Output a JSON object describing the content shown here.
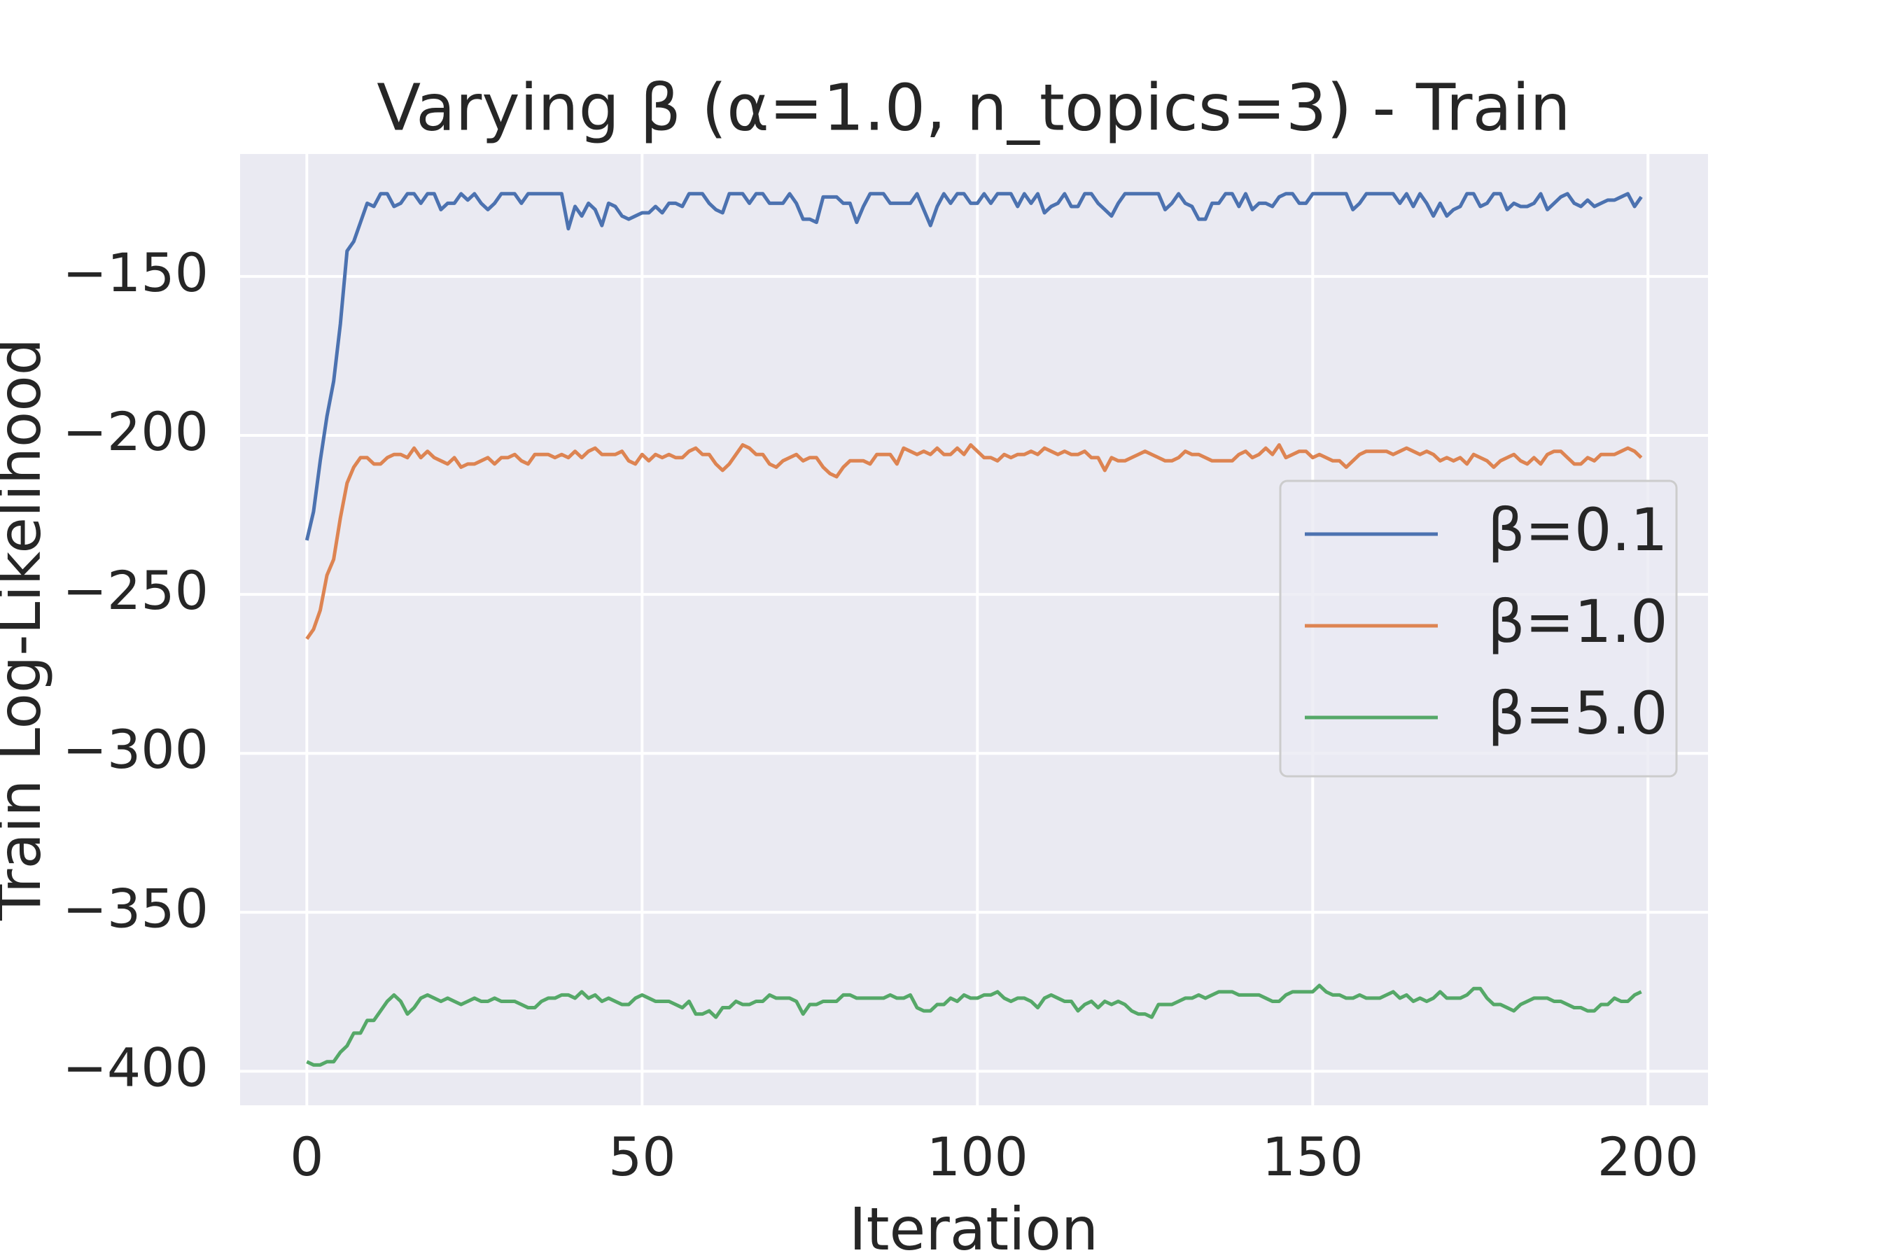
{
  "chart_data": {
    "type": "line",
    "title": "Varying β (α=1.0, n_topics=3) - Train",
    "xlabel": "Iteration",
    "ylabel": "Train Log-Likelihood",
    "x": [
      0,
      1,
      2,
      3,
      4,
      5,
      6,
      7,
      8,
      9,
      10,
      11,
      12,
      13,
      14,
      15,
      16,
      17,
      18,
      19,
      20,
      21,
      22,
      23,
      24,
      25,
      26,
      27,
      28,
      29,
      30,
      31,
      32,
      33,
      34,
      35,
      36,
      37,
      38,
      39,
      40,
      41,
      42,
      43,
      44,
      45,
      46,
      47,
      48,
      49,
      50,
      51,
      52,
      53,
      54,
      55,
      56,
      57,
      58,
      59,
      60,
      61,
      62,
      63,
      64,
      65,
      66,
      67,
      68,
      69,
      70,
      71,
      72,
      73,
      74,
      75,
      76,
      77,
      78,
      79,
      80,
      81,
      82,
      83,
      84,
      85,
      86,
      87,
      88,
      89,
      90,
      91,
      92,
      93,
      94,
      95,
      96,
      97,
      98,
      99,
      100,
      101,
      102,
      103,
      104,
      105,
      106,
      107,
      108,
      109,
      110,
      111,
      112,
      113,
      114,
      115,
      116,
      117,
      118,
      119,
      120,
      121,
      122,
      123,
      124,
      125,
      126,
      127,
      128,
      129,
      130,
      131,
      132,
      133,
      134,
      135,
      136,
      137,
      138,
      139,
      140,
      141,
      142,
      143,
      144,
      145,
      146,
      147,
      148,
      149,
      150,
      151,
      152,
      153,
      154,
      155,
      156,
      157,
      158,
      159,
      160,
      161,
      162,
      163,
      164,
      165,
      166,
      167,
      168,
      169,
      170,
      171,
      172,
      173,
      174,
      175,
      176,
      177,
      178,
      179,
      180,
      181,
      182,
      183,
      184,
      185,
      186,
      187,
      188,
      189,
      190,
      191,
      192,
      193,
      194,
      195,
      196,
      197,
      198,
      199
    ],
    "series": [
      {
        "name": "β=0.1",
        "color": "#4c72b0",
        "values": [
          -233,
          -224,
          -208,
          -194,
          -183,
          -165,
          -142,
          -139,
          -133,
          -127,
          -128,
          -124,
          -124,
          -128,
          -127,
          -124,
          -124,
          -127,
          -124,
          -124,
          -129,
          -127,
          -127,
          -124,
          -126,
          -124,
          -127,
          -129,
          -127,
          -124,
          -124,
          -124,
          -127,
          -124,
          -124,
          -124,
          -124,
          -124,
          -124,
          -135,
          -128,
          -131,
          -127,
          -129,
          -134,
          -127,
          -128,
          -131,
          -132,
          -131,
          -130,
          -130,
          -128,
          -130,
          -127,
          -127,
          -128,
          -124,
          -124,
          -124,
          -127,
          -129,
          -130,
          -124,
          -124,
          -124,
          -127,
          -124,
          -124,
          -127,
          -127,
          -127,
          -124,
          -127,
          -132,
          -132,
          -133,
          -125,
          -125,
          -125,
          -127,
          -127,
          -133,
          -128,
          -124,
          -124,
          -124,
          -127,
          -127,
          -127,
          -127,
          -124,
          -129,
          -134,
          -128,
          -124,
          -127,
          -124,
          -124,
          -127,
          -127,
          -124,
          -127,
          -124,
          -124,
          -124,
          -128,
          -124,
          -127,
          -124,
          -130,
          -128,
          -127,
          -124,
          -128,
          -128,
          -124,
          -124,
          -127,
          -129,
          -131,
          -127,
          -124,
          -124,
          -124,
          -124,
          -124,
          -124,
          -129,
          -127,
          -124,
          -127,
          -128,
          -132,
          -132,
          -127,
          -127,
          -124,
          -124,
          -128,
          -124,
          -129,
          -127,
          -127,
          -128,
          -125,
          -124,
          -124,
          -127,
          -127,
          -124,
          -124,
          -124,
          -124,
          -124,
          -124,
          -129,
          -127,
          -124,
          -124,
          -124,
          -124,
          -124,
          -127,
          -124,
          -128,
          -124,
          -127,
          -131,
          -127,
          -131,
          -129,
          -128,
          -124,
          -124,
          -128,
          -127,
          -124,
          -124,
          -129,
          -127,
          -128,
          -128,
          -127,
          -124,
          -129,
          -127,
          -125,
          -124,
          -127,
          -128,
          -126,
          -128,
          -127,
          -126,
          -126,
          -125,
          -124,
          -128,
          -125
        ]
      },
      {
        "name": "β=1.0",
        "color": "#dd8452",
        "values": [
          -264,
          -261,
          -255,
          -244,
          -239,
          -226,
          -215,
          -210,
          -207,
          -207,
          -209,
          -209,
          -207,
          -206,
          -206,
          -207,
          -204,
          -207,
          -205,
          -207,
          -208,
          -209,
          -207,
          -210,
          -209,
          -209,
          -208,
          -207,
          -209,
          -207,
          -207,
          -206,
          -208,
          -209,
          -206,
          -206,
          -206,
          -207,
          -206,
          -207,
          -205,
          -207,
          -205,
          -204,
          -206,
          -206,
          -206,
          -205,
          -208,
          -209,
          -206,
          -208,
          -206,
          -207,
          -206,
          -207,
          -207,
          -205,
          -204,
          -206,
          -206,
          -209,
          -211,
          -209,
          -206,
          -203,
          -204,
          -206,
          -206,
          -209,
          -210,
          -208,
          -207,
          -206,
          -208,
          -207,
          -207,
          -210,
          -212,
          -213,
          -210,
          -208,
          -208,
          -208,
          -209,
          -206,
          -206,
          -206,
          -209,
          -204,
          -205,
          -206,
          -205,
          -206,
          -204,
          -206,
          -206,
          -204,
          -206,
          -203,
          -205,
          -207,
          -207,
          -208,
          -206,
          -207,
          -206,
          -206,
          -205,
          -206,
          -204,
          -205,
          -206,
          -205,
          -206,
          -206,
          -205,
          -207,
          -207,
          -211,
          -207,
          -208,
          -208,
          -207,
          -206,
          -205,
          -206,
          -207,
          -208,
          -208,
          -207,
          -205,
          -206,
          -206,
          -207,
          -208,
          -208,
          -208,
          -208,
          -206,
          -205,
          -207,
          -206,
          -204,
          -206,
          -203,
          -207,
          -206,
          -205,
          -205,
          -207,
          -206,
          -207,
          -208,
          -208,
          -210,
          -208,
          -206,
          -205,
          -205,
          -205,
          -205,
          -206,
          -205,
          -204,
          -205,
          -206,
          -205,
          -206,
          -208,
          -207,
          -208,
          -207,
          -209,
          -206,
          -207,
          -208,
          -210,
          -208,
          -207,
          -206,
          -208,
          -209,
          -207,
          -209,
          -206,
          -205,
          -205,
          -207,
          -209,
          -209,
          -207,
          -208,
          -206,
          -206,
          -206,
          -205,
          -204,
          -205,
          -207
        ]
      },
      {
        "name": "β=5.0",
        "color": "#55a868",
        "values": [
          -397,
          -398,
          -398,
          -397,
          -397,
          -394,
          -392,
          -388,
          -388,
          -384,
          -384,
          -381,
          -378,
          -376,
          -378,
          -382,
          -380,
          -377,
          -376,
          -377,
          -378,
          -377,
          -378,
          -379,
          -378,
          -377,
          -378,
          -378,
          -377,
          -378,
          -378,
          -378,
          -379,
          -380,
          -380,
          -378,
          -377,
          -377,
          -376,
          -376,
          -377,
          -375,
          -377,
          -376,
          -378,
          -377,
          -378,
          -379,
          -379,
          -377,
          -376,
          -377,
          -378,
          -378,
          -378,
          -379,
          -380,
          -378,
          -382,
          -382,
          -381,
          -383,
          -380,
          -380,
          -378,
          -379,
          -379,
          -378,
          -378,
          -376,
          -377,
          -377,
          -377,
          -378,
          -382,
          -379,
          -379,
          -378,
          -378,
          -378,
          -376,
          -376,
          -377,
          -377,
          -377,
          -377,
          -377,
          -376,
          -377,
          -377,
          -376,
          -380,
          -381,
          -381,
          -379,
          -379,
          -377,
          -378,
          -376,
          -377,
          -377,
          -376,
          -376,
          -375,
          -377,
          -378,
          -377,
          -377,
          -378,
          -380,
          -377,
          -376,
          -377,
          -378,
          -378,
          -381,
          -379,
          -378,
          -380,
          -378,
          -379,
          -378,
          -379,
          -381,
          -382,
          -382,
          -383,
          -379,
          -379,
          -379,
          -378,
          -377,
          -377,
          -376,
          -377,
          -376,
          -375,
          -375,
          -375,
          -376,
          -376,
          -376,
          -376,
          -377,
          -378,
          -378,
          -376,
          -375,
          -375,
          -375,
          -375,
          -373,
          -375,
          -376,
          -376,
          -377,
          -377,
          -376,
          -377,
          -377,
          -377,
          -376,
          -375,
          -377,
          -376,
          -378,
          -377,
          -378,
          -377,
          -375,
          -377,
          -377,
          -377,
          -376,
          -374,
          -374,
          -377,
          -379,
          -379,
          -380,
          -381,
          -379,
          -378,
          -377,
          -377,
          -377,
          -378,
          -378,
          -379,
          -380,
          -380,
          -381,
          -381,
          -379,
          -379,
          -377,
          -378,
          -378,
          -376,
          -375
        ]
      }
    ],
    "xlim": [
      -9.95,
      208.95
    ],
    "ylim": [
      -410.7,
      -111.5
    ],
    "xticks": [
      0,
      50,
      100,
      150,
      200
    ],
    "yticks": [
      {
        "value": -400,
        "label": "−400"
      },
      {
        "value": -350,
        "label": "−350"
      },
      {
        "value": -300,
        "label": "−300"
      },
      {
        "value": -250,
        "label": "−250"
      },
      {
        "value": -200,
        "label": "−200"
      },
      {
        "value": -150,
        "label": "−150"
      }
    ],
    "grid": true,
    "legend": "right"
  }
}
